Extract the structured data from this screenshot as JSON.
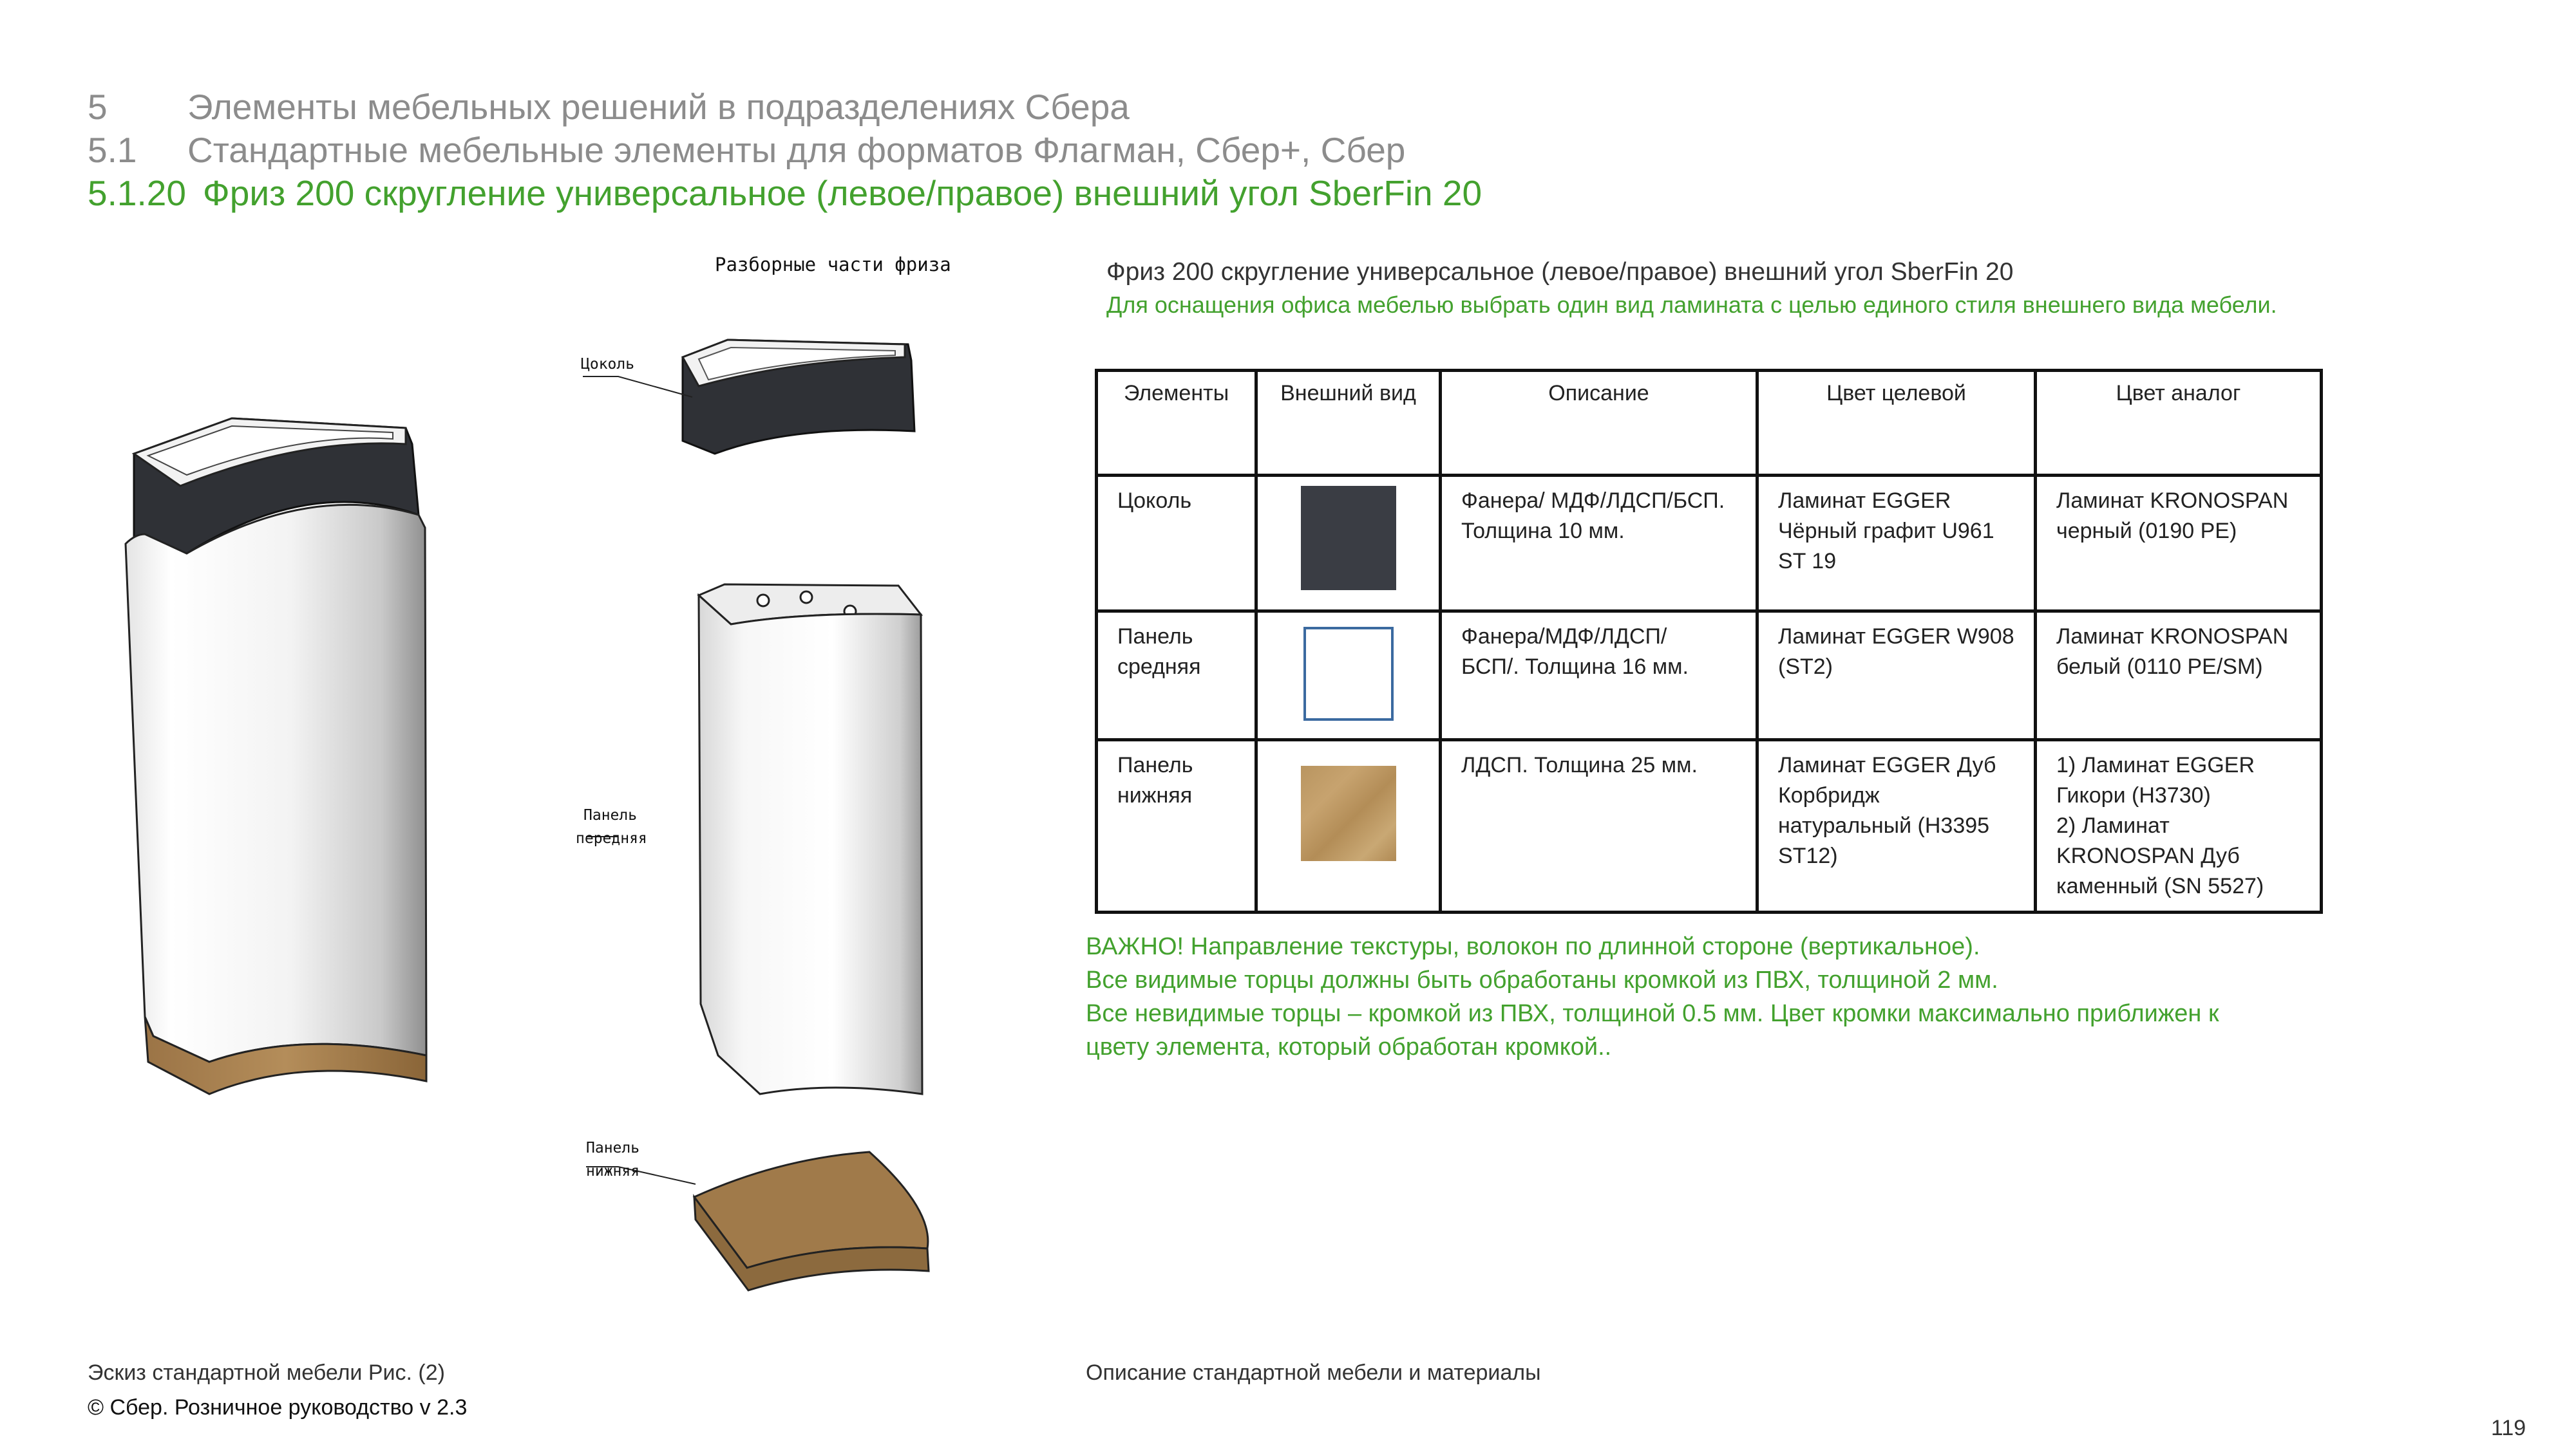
{
  "headings": [
    {
      "num": "5",
      "text": "Элементы мебельных решений в подразделениях Сбера"
    },
    {
      "num": "5.1",
      "text": "Стандартные мебельные элементы для форматов Флагман, Сбер+, Сбер"
    },
    {
      "num": "5.1.20",
      "text": "Фриз 200 скругление универсальное (левое/правое) внешний угол SberFin 20"
    }
  ],
  "drawing": {
    "title": "Разборные части фриза",
    "labels": {
      "plinth": "Цоколь",
      "front_panel_1": "Панель",
      "front_panel_2": "передняя",
      "bottom_panel_1": "Панель",
      "bottom_panel_2": "нижняя"
    }
  },
  "description": {
    "title": "Фриз  200 скругление универсальное (левое/правое) внешний угол  SberFin 20",
    "subtitle": "Для оснащения офиса мебелью выбрать один вид ламината с целью единого стиля внешнего вида мебели."
  },
  "table": {
    "headers": [
      "Элементы",
      "Внешний вид",
      "Описание",
      "Цвет целевой",
      "Цвет аналог"
    ],
    "rows": [
      {
        "element": "Цоколь",
        "swatch": "black",
        "description": [
          "Фанера/ МДФ/ЛДСП/БСП.",
          "Толщина 10 мм."
        ],
        "target": [
          "Ламинат EGGER",
          "Чёрный графит U961",
          "ST 19"
        ],
        "analog": [
          "Ламинат KRONOSPAN",
          "черный  (0190 PE)"
        ]
      },
      {
        "element": [
          "Панель",
          "средняя"
        ],
        "swatch": "white",
        "description": [
          "Фанера/МДФ/ЛДСП/",
          "БСП/.  Толщина 16 мм."
        ],
        "target": [
          "Ламинат EGGER W908",
          "(ST2)"
        ],
        "analog": [
          "Ламинат KRONOSPAN",
          "белый (0110 PE/SM)"
        ]
      },
      {
        "element": [
          "Панель",
          "нижняя"
        ],
        "swatch": "oak",
        "description": [
          "ЛДСП. Толщина 25 мм."
        ],
        "target": [
          "Ламинат EGGER Дуб",
          "Корбридж",
          "натуральный  (H3395",
          "ST12)"
        ],
        "analog": [
          "1) Ламинат EGGER",
          "Гикори (H3730)",
          "2)  Ламинат",
          "KRONOSPAN Дуб",
          "каменный (SN 5527)"
        ]
      }
    ]
  },
  "notes": [
    "ВАЖНО! Направление текстуры, волокон по длинной стороне (вертикальное).",
    "Все видимые торцы должны быть обработаны кромкой из ПВХ, толщиной 2 мм.",
    "Все невидимые торцы – кромкой из ПВХ, толщиной 0.5 мм. Цвет кромки максимально приближен к",
    "цвету  элемента, который обработан кромкой.."
  ],
  "footer": {
    "caption_left": "Эскиз стандартной мебели Рис. (2)",
    "caption_right": "Описание стандартной мебели и материалы",
    "copyright": "© Сбер. Розничное руководство  v 2.3",
    "page_number": "119"
  },
  "colors": {
    "accent_green": "#43a12e",
    "heading_gray": "#8c8c8c",
    "plinth_black": "#3a3d44",
    "oak": "#b99560"
  }
}
